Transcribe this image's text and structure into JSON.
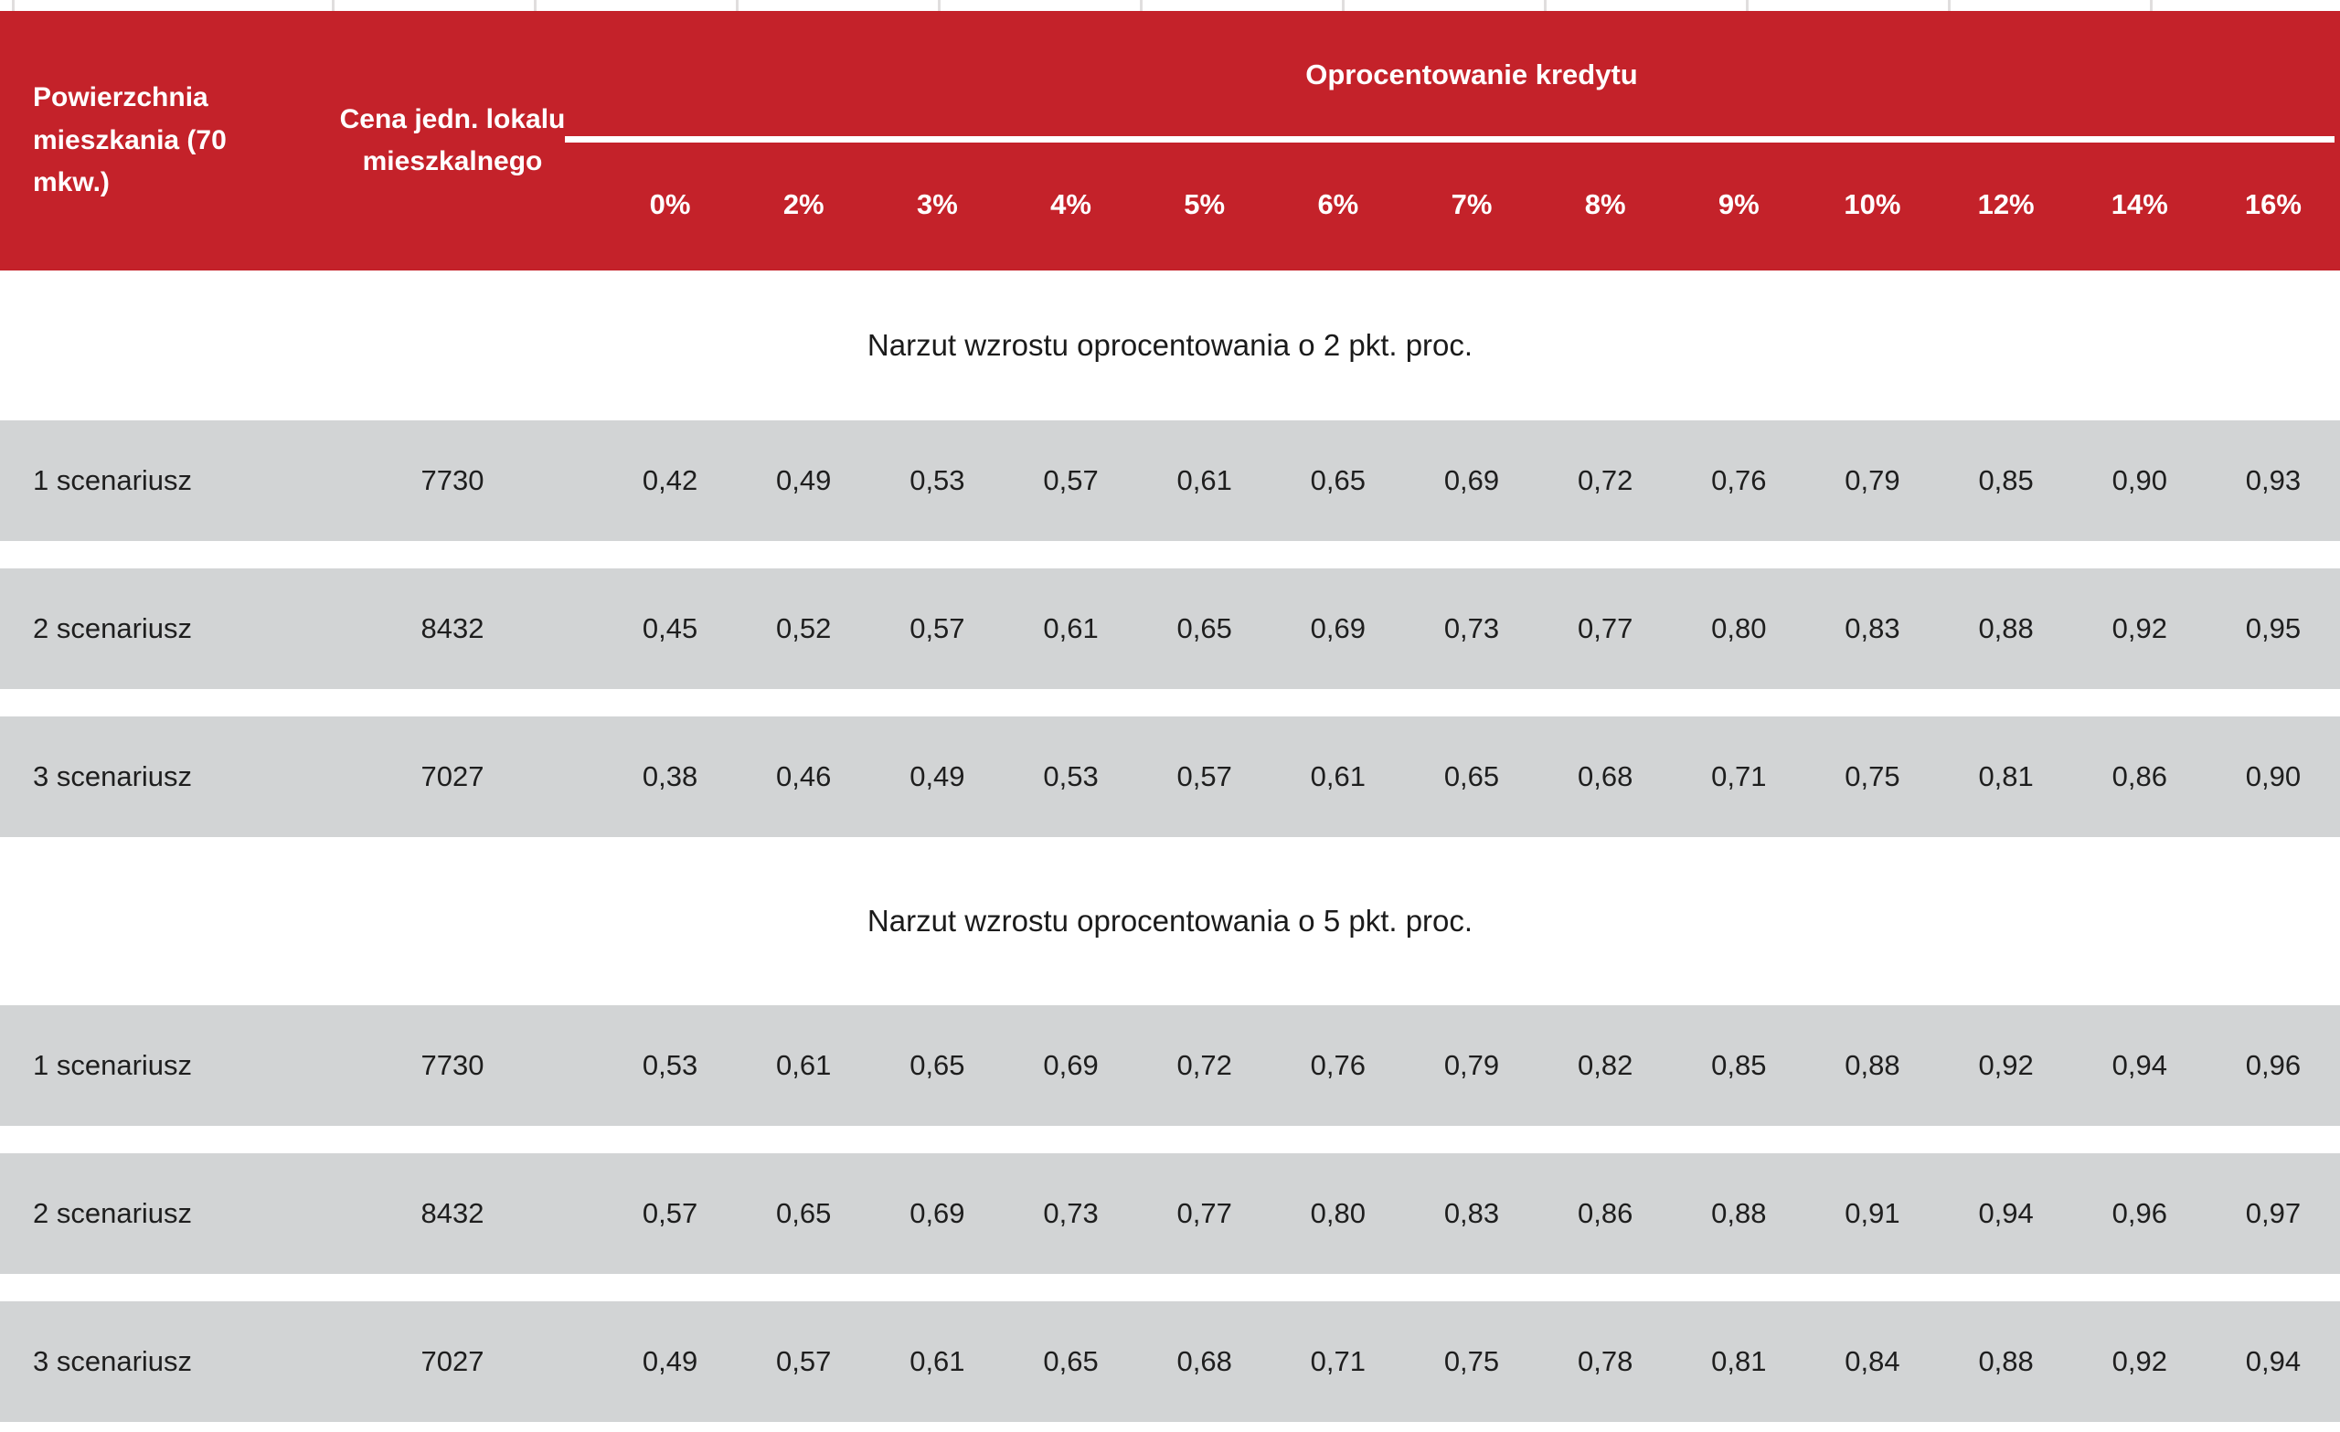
{
  "table": {
    "header": {
      "area_label": "Powierzchnia mieszkania (70 mkw.)",
      "price_label": "Cena jedn. lokalu mieszkalnego",
      "group_label": "Oprocentowanie kredytu",
      "rates": [
        "0%",
        "2%",
        "3%",
        "4%",
        "5%",
        "6%",
        "7%",
        "8%",
        "9%",
        "10%",
        "12%",
        "14%",
        "16%"
      ]
    },
    "sections": [
      {
        "title": "Narzut wzrostu oprocentowania o 2 pkt. proc.",
        "rows": [
          {
            "label": "1 scenariusz",
            "price": "7730",
            "values": [
              "0,42",
              "0,49",
              "0,53",
              "0,57",
              "0,61",
              "0,65",
              "0,69",
              "0,72",
              "0,76",
              "0,79",
              "0,85",
              "0,90",
              "0,93"
            ]
          },
          {
            "label": "2 scenariusz",
            "price": "8432",
            "values": [
              "0,45",
              "0,52",
              "0,57",
              "0,61",
              "0,65",
              "0,69",
              "0,73",
              "0,77",
              "0,80",
              "0,83",
              "0,88",
              "0,92",
              "0,95"
            ]
          },
          {
            "label": "3 scenariusz",
            "price": "7027",
            "values": [
              "0,38",
              "0,46",
              "0,49",
              "0,53",
              "0,57",
              "0,61",
              "0,65",
              "0,68",
              "0,71",
              "0,75",
              "0,81",
              "0,86",
              "0,90"
            ]
          }
        ]
      },
      {
        "title": "Narzut wzrostu oprocentowania o 5 pkt. proc.",
        "rows": [
          {
            "label": "1 scenariusz",
            "price": "7730",
            "values": [
              "0,53",
              "0,61",
              "0,65",
              "0,69",
              "0,72",
              "0,76",
              "0,79",
              "0,82",
              "0,85",
              "0,88",
              "0,92",
              "0,94",
              "0,96"
            ]
          },
          {
            "label": "2 scenariusz",
            "price": "8432",
            "values": [
              "0,57",
              "0,65",
              "0,69",
              "0,73",
              "0,77",
              "0,80",
              "0,83",
              "0,86",
              "0,88",
              "0,91",
              "0,94",
              "0,96",
              "0,97"
            ]
          },
          {
            "label": "3 scenariusz",
            "price": "7027",
            "values": [
              "0,49",
              "0,57",
              "0,61",
              "0,65",
              "0,68",
              "0,71",
              "0,75",
              "0,78",
              "0,81",
              "0,84",
              "0,88",
              "0,92",
              "0,94"
            ]
          }
        ]
      }
    ]
  },
  "colors": {
    "header_red": "#C4222A",
    "row_gray": "#D2D4D5",
    "header_text": "#FFFFFF",
    "body_text": "#1E1E1E"
  }
}
